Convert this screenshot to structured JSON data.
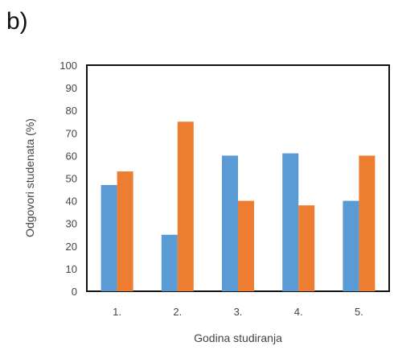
{
  "panel_label": "b)",
  "chart_data": {
    "type": "bar",
    "title": "",
    "xlabel": "Godina studiranja",
    "ylabel": "Odgovori studenata (%)",
    "categories": [
      "1.",
      "2.",
      "3.",
      "4.",
      "5."
    ],
    "series": [
      {
        "color": "#5b9bd5",
        "values": [
          47,
          25,
          60,
          61,
          40
        ]
      },
      {
        "color": "#ed7d31",
        "values": [
          53,
          75,
          40,
          38,
          60
        ]
      }
    ],
    "ylim": [
      0,
      100
    ],
    "yticks": [
      "0",
      "10",
      "20",
      "30",
      "40",
      "50",
      "60",
      "70",
      "80",
      "90",
      "100"
    ],
    "grid": false,
    "legend": "none"
  }
}
